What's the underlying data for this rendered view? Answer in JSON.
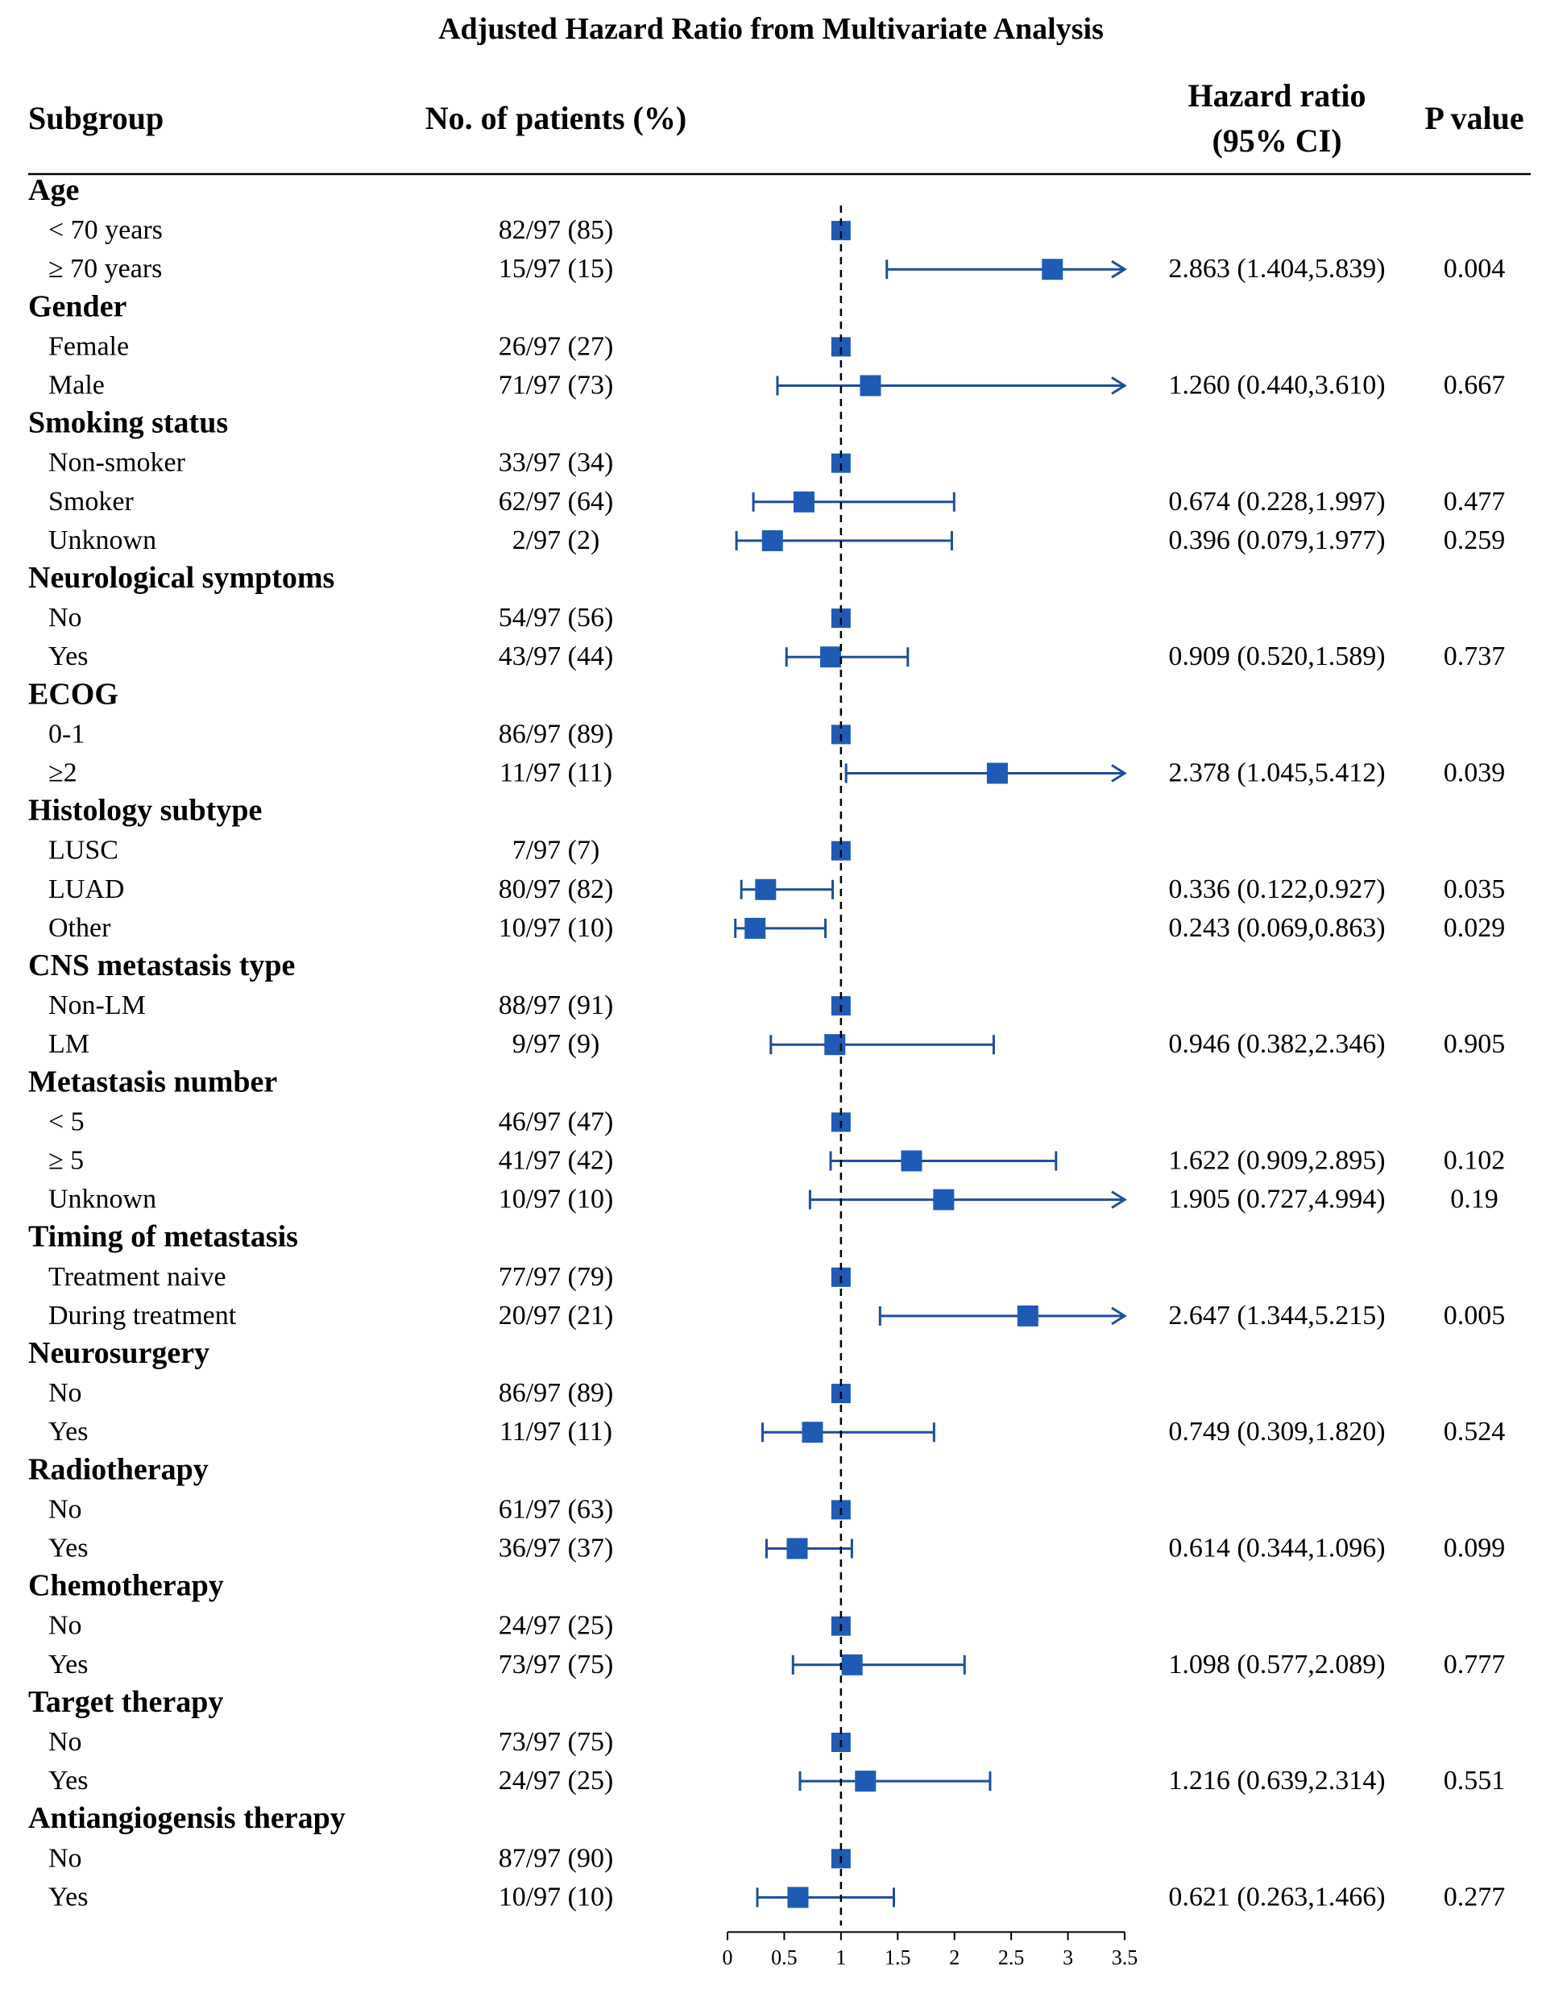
{
  "chart_data": {
    "type": "forest",
    "title": "Adjusted Hazard Ratio from Multivariate Analysis",
    "columns": {
      "subgroup": "Subgroup",
      "patients": "No. of patients (%)",
      "hr_line1": "Hazard ratio",
      "hr_line2": "(95% CI)",
      "pvalue": "P value"
    },
    "xaxis": {
      "ticks": [
        0,
        0.5,
        1,
        1.5,
        2,
        2.5,
        3,
        3.5
      ],
      "tick_labels": [
        "0",
        "0.5",
        "1",
        "1.5",
        "2",
        "2.5",
        "3",
        "3.5"
      ],
      "range": [
        0,
        3.5
      ],
      "reference": 1
    },
    "groups": [
      {
        "label": "Age",
        "rows": [
          {
            "label": "< 70 years",
            "n": "82/97 (85)",
            "hr": 1,
            "ref": true
          },
          {
            "label": "≥ 70 years",
            "n": "15/97 (15)",
            "hr": 2.863,
            "lo": 1.404,
            "hi": 5.839,
            "ci_text": "2.863 (1.404,5.839)",
            "p": "0.004"
          }
        ]
      },
      {
        "label": "Gender",
        "rows": [
          {
            "label": "Female",
            "n": "26/97 (27)",
            "hr": 1,
            "ref": true
          },
          {
            "label": "Male",
            "n": "71/97 (73)",
            "hr": 1.26,
            "lo": 0.44,
            "hi": 3.61,
            "ci_text": "1.260 (0.440,3.610)",
            "p": "0.667"
          }
        ]
      },
      {
        "label": "Smoking status",
        "rows": [
          {
            "label": "Non-smoker",
            "n": "33/97 (34)",
            "hr": 1,
            "ref": true
          },
          {
            "label": "Smoker",
            "n": "62/97 (64)",
            "hr": 0.674,
            "lo": 0.228,
            "hi": 1.997,
            "ci_text": "0.674 (0.228,1.997)",
            "p": "0.477"
          },
          {
            "label": "Unknown",
            "n": "2/97 (2)",
            "hr": 0.396,
            "lo": 0.079,
            "hi": 1.977,
            "ci_text": "0.396 (0.079,1.977)",
            "p": "0.259"
          }
        ]
      },
      {
        "label": "Neurological symptoms",
        "rows": [
          {
            "label": "No",
            "n": "54/97 (56)",
            "hr": 1,
            "ref": true
          },
          {
            "label": "Yes",
            "n": "43/97 (44)",
            "hr": 0.909,
            "lo": 0.52,
            "hi": 1.589,
            "ci_text": "0.909 (0.520,1.589)",
            "p": "0.737"
          }
        ]
      },
      {
        "label": "ECOG",
        "rows": [
          {
            "label": "0-1",
            "n": "86/97 (89)",
            "hr": 1,
            "ref": true
          },
          {
            "label": "≥2",
            "n": "11/97 (11)",
            "hr": 2.378,
            "lo": 1.045,
            "hi": 5.412,
            "ci_text": "2.378 (1.045,5.412)",
            "p": "0.039"
          }
        ]
      },
      {
        "label": "Histology subtype",
        "rows": [
          {
            "label": "LUSC",
            "n": "7/97 (7)",
            "hr": 1,
            "ref": true
          },
          {
            "label": "LUAD",
            "n": "80/97 (82)",
            "hr": 0.336,
            "lo": 0.122,
            "hi": 0.927,
            "ci_text": "0.336 (0.122,0.927)",
            "p": "0.035"
          },
          {
            "label": "Other",
            "n": "10/97 (10)",
            "hr": 0.243,
            "lo": 0.069,
            "hi": 0.863,
            "ci_text": "0.243 (0.069,0.863)",
            "p": "0.029"
          }
        ]
      },
      {
        "label": "CNS metastasis type",
        "rows": [
          {
            "label": "Non-LM",
            "n": "88/97 (91)",
            "hr": 1,
            "ref": true
          },
          {
            "label": "LM",
            "n": "9/97 (9)",
            "hr": 0.946,
            "lo": 0.382,
            "hi": 2.346,
            "ci_text": "0.946 (0.382,2.346)",
            "p": "0.905"
          }
        ]
      },
      {
        "label": "Metastasis number",
        "rows": [
          {
            "label": "< 5",
            "n": "46/97 (47)",
            "hr": 1,
            "ref": true
          },
          {
            "label": "≥ 5",
            "n": "41/97 (42)",
            "hr": 1.622,
            "lo": 0.909,
            "hi": 2.895,
            "ci_text": "1.622 (0.909,2.895)",
            "p": "0.102"
          },
          {
            "label": "Unknown",
            "n": "10/97 (10)",
            "hr": 1.905,
            "lo": 0.727,
            "hi": 4.994,
            "ci_text": "1.905 (0.727,4.994)",
            "p": "0.19"
          }
        ]
      },
      {
        "label": "Timing of metastasis",
        "rows": [
          {
            "label": "Treatment naive",
            "n": "77/97 (79)",
            "hr": 1,
            "ref": true
          },
          {
            "label": "During treatment",
            "n": "20/97 (21)",
            "hr": 2.647,
            "lo": 1.344,
            "hi": 5.215,
            "ci_text": "2.647 (1.344,5.215)",
            "p": "0.005"
          }
        ]
      },
      {
        "label": "Neurosurgery",
        "rows": [
          {
            "label": "No",
            "n": "86/97 (89)",
            "hr": 1,
            "ref": true
          },
          {
            "label": "Yes",
            "n": "11/97 (11)",
            "hr": 0.749,
            "lo": 0.309,
            "hi": 1.82,
            "ci_text": "0.749 (0.309,1.820)",
            "p": "0.524"
          }
        ]
      },
      {
        "label": "Radiotherapy",
        "rows": [
          {
            "label": "No",
            "n": "61/97 (63)",
            "hr": 1,
            "ref": true
          },
          {
            "label": "Yes",
            "n": "36/97 (37)",
            "hr": 0.614,
            "lo": 0.344,
            "hi": 1.096,
            "ci_text": "0.614 (0.344,1.096)",
            "p": "0.099"
          }
        ]
      },
      {
        "label": "Chemotherapy",
        "rows": [
          {
            "label": "No",
            "n": "24/97 (25)",
            "hr": 1,
            "ref": true
          },
          {
            "label": "Yes",
            "n": "73/97 (75)",
            "hr": 1.098,
            "lo": 0.577,
            "hi": 2.089,
            "ci_text": "1.098 (0.577,2.089)",
            "p": "0.777"
          }
        ]
      },
      {
        "label": "Target therapy",
        "rows": [
          {
            "label": "No",
            "n": "73/97 (75)",
            "hr": 1,
            "ref": true
          },
          {
            "label": "Yes",
            "n": "24/97 (25)",
            "hr": 1.216,
            "lo": 0.639,
            "hi": 2.314,
            "ci_text": "1.216 (0.639,2.314)",
            "p": "0.551"
          }
        ]
      },
      {
        "label": "Antiangiogensis therapy",
        "rows": [
          {
            "label": "No",
            "n": "87/97 (90)",
            "hr": 1,
            "ref": true
          },
          {
            "label": "Yes",
            "n": "10/97 (10)",
            "hr": 0.621,
            "lo": 0.263,
            "hi": 1.466,
            "ci_text": "0.621 (0.263,1.466)",
            "p": "0.277"
          }
        ]
      }
    ]
  },
  "colors": {
    "marker": "#1f5bb5",
    "line": "#1f4e9a",
    "text": "#000000"
  }
}
